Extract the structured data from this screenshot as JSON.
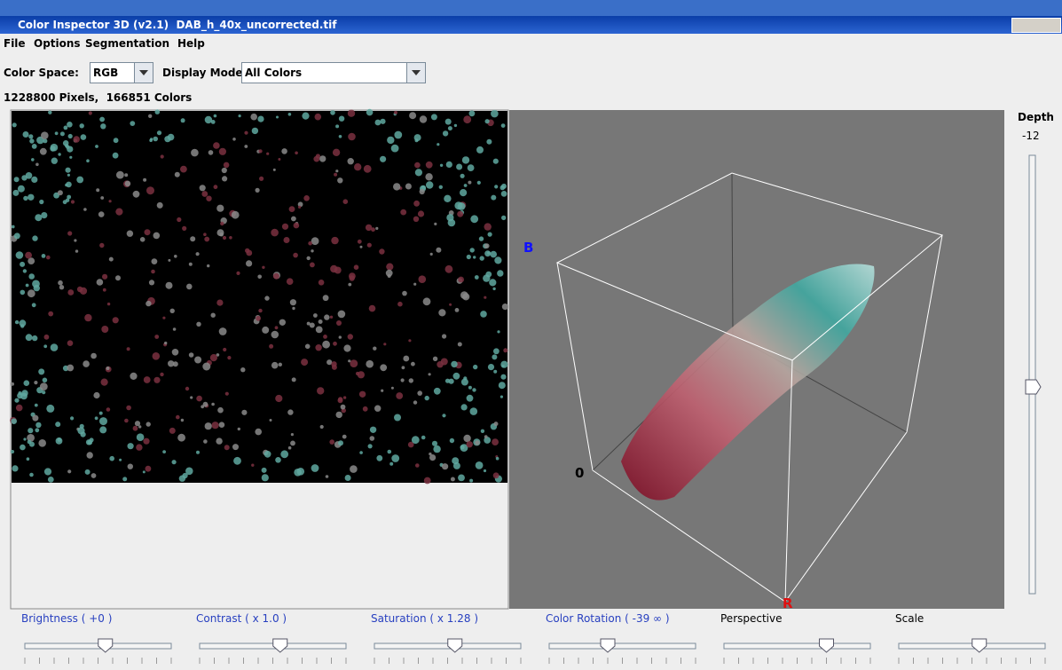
{
  "window": {
    "title": "Color Inspector 3D (v2.1)  DAB_h_40x_uncorrected.tif"
  },
  "menu": [
    "File",
    "Options",
    "Segmentation",
    "Help"
  ],
  "toolbar": {
    "color_space_label": "Color Space:",
    "color_space": "RGB",
    "display_mode_label": "Display Mode:",
    "display_mode": "All Colors"
  },
  "info": "1228800 Pixels,  166851 Colors",
  "depth": {
    "label": "Depth",
    "value": "-12"
  },
  "axes": {
    "b": "B",
    "origin": "0",
    "r": "R"
  },
  "sliders": [
    "Brightness ( +0 )",
    "Contrast ( x 1.0 )",
    "Saturation ( x 1.28 )",
    "Color Rotation ( -39 ∞ )",
    "Perspective",
    "Scale"
  ]
}
